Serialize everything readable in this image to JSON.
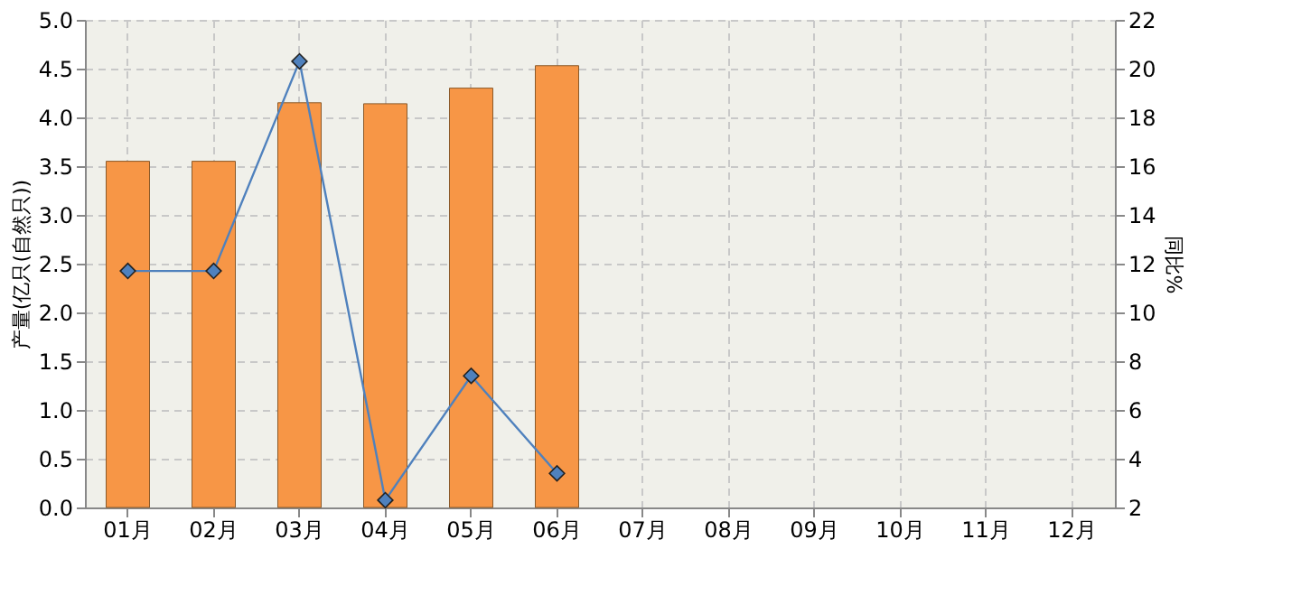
{
  "chart_data": {
    "type": "bar",
    "categories": [
      "01月",
      "02月",
      "03月",
      "04月",
      "05月",
      "06月",
      "07月",
      "08月",
      "09月",
      "10月",
      "11月",
      "12月"
    ],
    "ylabel": "产量(亿只(自然只))",
    "y2label": "同比%",
    "ylim": [
      0,
      5
    ],
    "yticks": [
      {
        "value": 0,
        "label": "0.0"
      },
      0.5,
      {
        "value": 1,
        "label": "1.0"
      },
      1.5,
      {
        "value": 2,
        "label": "2.0"
      },
      2.5,
      {
        "value": 3,
        "label": "3.0"
      },
      3.5,
      {
        "value": 4,
        "label": "4.0"
      },
      4.5,
      {
        "value": 5,
        "label": "5.0"
      }
    ],
    "y2lim": [
      2,
      22
    ],
    "y2ticks": [
      2,
      4,
      6,
      8,
      10,
      12,
      14,
      16,
      18,
      20,
      22
    ],
    "grid": true,
    "marker": "diamond",
    "series": [
      {
        "color": "#f79646",
        "values": [
          3.55,
          3.55,
          4.15,
          4.14,
          4.3,
          4.53,
          null,
          null,
          null,
          null,
          null,
          null
        ]
      },
      {
        "type": "line",
        "axis": "y2",
        "color": "#4f81bd",
        "values": [
          11.7,
          11.7,
          20.3,
          2.3,
          7.4,
          3.4,
          null,
          null,
          null,
          null,
          null,
          null
        ]
      }
    ]
  }
}
